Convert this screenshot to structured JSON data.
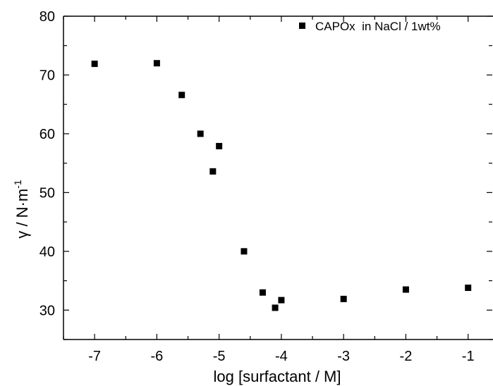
{
  "chart_data": {
    "type": "scatter",
    "xlabel": "log [surfactant / M]",
    "ylabel": "γ / N·m",
    "ylabel_superscript": "-1",
    "xlim": [
      -7.5,
      -0.6
    ],
    "ylim": [
      25,
      80
    ],
    "x_ticks": [
      -7,
      -6,
      -5,
      -4,
      -3,
      -2,
      -1
    ],
    "y_ticks": [
      30,
      40,
      50,
      60,
      70,
      80
    ],
    "grid": false,
    "legend_position": "top-right",
    "series": [
      {
        "name": "CAPOx  in NaCl / 1wt%",
        "marker": "square",
        "color": "#000000",
        "points": [
          {
            "x": -7.0,
            "y": 71.9
          },
          {
            "x": -6.0,
            "y": 72.0
          },
          {
            "x": -5.6,
            "y": 66.6
          },
          {
            "x": -5.3,
            "y": 60.0
          },
          {
            "x": -5.1,
            "y": 53.6
          },
          {
            "x": -5.0,
            "y": 57.9
          },
          {
            "x": -4.6,
            "y": 40.0
          },
          {
            "x": -4.3,
            "y": 33.0
          },
          {
            "x": -4.1,
            "y": 30.4
          },
          {
            "x": -4.0,
            "y": 31.7
          },
          {
            "x": -3.0,
            "y": 31.9
          },
          {
            "x": -2.0,
            "y": 33.5
          },
          {
            "x": -1.0,
            "y": 33.8
          }
        ]
      }
    ]
  }
}
